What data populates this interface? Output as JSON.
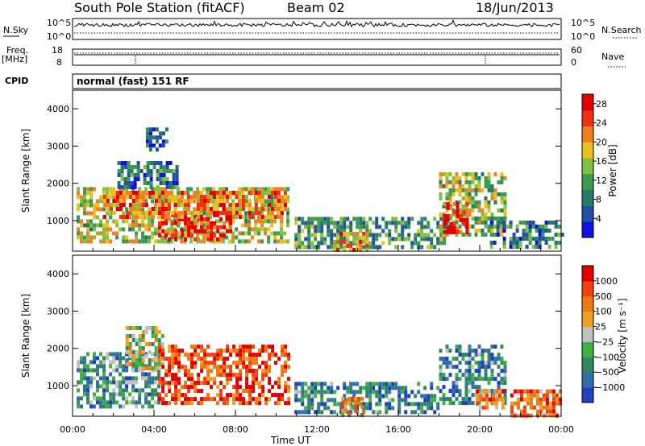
{
  "header": {
    "station": "South Pole Station (fitACF)",
    "beam": "Beam 02",
    "date": "18/Jun/2013"
  },
  "panels": {
    "nsky_label": "N.Sky",
    "nsky_top": "10^5",
    "nsky_bottom": "10^0",
    "nsearch_label": "N.Search",
    "nsearch_top": "10^5",
    "nsearch_bottom": "10^0",
    "freq_label": "Freq.",
    "freq_unit": "[MHz]",
    "freq_top": "18",
    "freq_bottom": "8",
    "nave_label": "Nave",
    "nave_top": "60",
    "nave_bottom": "0",
    "cpid_label": "CPID",
    "cpid_value": "normal (fast) 151 RF"
  },
  "chart_data": [
    {
      "type": "heatmap",
      "name": "power",
      "ylabel": "Slant Range [km]",
      "ylim": [
        180,
        4500
      ],
      "yticks": [
        1000,
        2000,
        3000,
        4000
      ],
      "xlim": [
        0,
        24
      ],
      "colorbar": {
        "label": "Power [dB]",
        "range": [
          0,
          30
        ],
        "ticks": [
          4,
          8,
          12,
          16,
          20,
          24,
          28
        ],
        "colors": [
          "#1010e0",
          "#2050a8",
          "#287868",
          "#3a9a50",
          "#80c040",
          "#e8c020",
          "#f08020",
          "#f03010",
          "#e00000"
        ]
      },
      "regions": [
        {
          "t0": 0.2,
          "t1": 10.6,
          "r0": 400,
          "r1": 1900,
          "level": 0.55
        },
        {
          "t0": 4.2,
          "t1": 7.8,
          "r0": 550,
          "r1": 1200,
          "level": 0.92
        },
        {
          "t0": 1.5,
          "t1": 10.4,
          "r0": 1100,
          "r1": 1800,
          "level": 0.75
        },
        {
          "t0": 2.2,
          "t1": 5.2,
          "r0": 1900,
          "r1": 2600,
          "level": 0.25
        },
        {
          "t0": 3.6,
          "t1": 4.6,
          "r0": 2900,
          "r1": 3500,
          "level": 0.2
        },
        {
          "t0": 10.9,
          "t1": 18.2,
          "r0": 250,
          "r1": 1100,
          "level": 0.35
        },
        {
          "t0": 12.8,
          "t1": 14.4,
          "r0": 250,
          "r1": 700,
          "level": 0.7
        },
        {
          "t0": 18.0,
          "t1": 21.2,
          "r0": 600,
          "r1": 2300,
          "level": 0.5
        },
        {
          "t0": 18.2,
          "t1": 19.4,
          "r0": 650,
          "r1": 1500,
          "level": 0.9
        },
        {
          "t0": 20.5,
          "t1": 24.0,
          "r0": 250,
          "r1": 1000,
          "level": 0.3
        }
      ]
    },
    {
      "type": "heatmap",
      "name": "velocity",
      "ylabel": "Slant Range [km]",
      "ylim": [
        180,
        4500
      ],
      "yticks": [
        1000,
        2000,
        3000,
        4000
      ],
      "xlim": [
        0,
        24
      ],
      "xticks": [
        "00:00",
        "04:00",
        "08:00",
        "12:00",
        "16:00",
        "20:00",
        "00:00"
      ],
      "xlabel": "Time UT",
      "colorbar": {
        "label": "Velocity [m s⁻¹]",
        "ticks": [
          "1000",
          "500",
          "100",
          "25",
          "−25",
          "−100",
          "−500",
          "−1000"
        ],
        "colors": [
          "#2040c0",
          "#3070a8",
          "#308860",
          "#40b040",
          "#c0c0c0",
          "#f0a020",
          "#f07810",
          "#f04010",
          "#e00000"
        ]
      },
      "regions": [
        {
          "t0": 0.2,
          "t1": 4.2,
          "r0": 400,
          "r1": 1900,
          "level": 0.3
        },
        {
          "t0": 2.6,
          "t1": 4.4,
          "r0": 1500,
          "r1": 2600,
          "level": 0.5
        },
        {
          "t0": 4.2,
          "t1": 10.6,
          "r0": 500,
          "r1": 2100,
          "level": 0.85
        },
        {
          "t0": 10.9,
          "t1": 18.0,
          "r0": 250,
          "r1": 1100,
          "level": 0.25
        },
        {
          "t0": 13.2,
          "t1": 14.2,
          "r0": 250,
          "r1": 700,
          "level": 0.65
        },
        {
          "t0": 18.0,
          "t1": 21.2,
          "r0": 500,
          "r1": 2100,
          "level": 0.25
        },
        {
          "t0": 19.8,
          "t1": 21.2,
          "r0": 400,
          "r1": 900,
          "level": 0.7
        },
        {
          "t0": 21.5,
          "t1": 24.0,
          "r0": 250,
          "r1": 900,
          "level": 0.75
        }
      ]
    }
  ]
}
